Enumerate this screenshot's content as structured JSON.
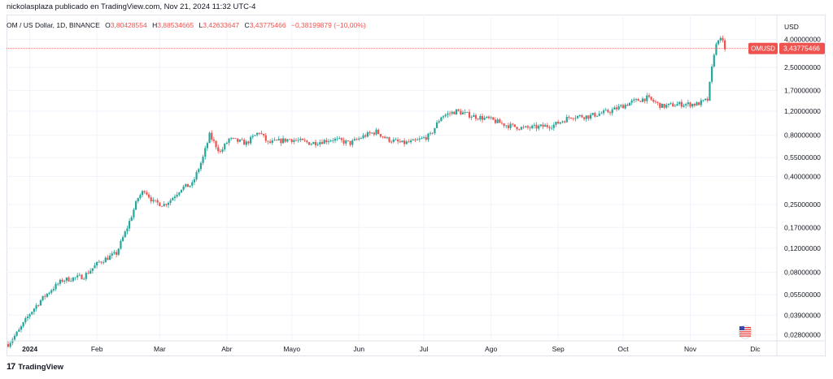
{
  "header": {
    "publish_line": "nickolasplaza publicado en TradingView.com, Nov 21, 2024 11:32 UTC-4"
  },
  "legend": {
    "symbol": "OM / US Dollar, 1D, BINANCE",
    "open_label": "O",
    "open": "3,80428554",
    "high_label": "H",
    "high": "3,88534665",
    "low_label": "L",
    "low": "3,42633647",
    "close_label": "C",
    "close": "3,43775466",
    "change": "−0,38199879 (−10,00%)"
  },
  "footer": {
    "brand": "TradingView",
    "logo_text": "17"
  },
  "colors": {
    "up": "#26a69a",
    "down": "#ef5350",
    "grid": "#f0f3fa",
    "axis_text": "#131722",
    "price_line": "#ef5350"
  },
  "chart_data": {
    "type": "candlestick",
    "scale": "log",
    "currency_label": "USD",
    "last_price_tag": {
      "ticker": "OMUSD",
      "value": "3,43775466",
      "price": 3.43775466
    },
    "y_ticks": [
      {
        "value": 4.0,
        "label": "4,00000000"
      },
      {
        "value": 2.5,
        "label": "2,50000000"
      },
      {
        "value": 1.7,
        "label": "1,70000000"
      },
      {
        "value": 1.2,
        "label": "1,20000000"
      },
      {
        "value": 0.8,
        "label": "0,80000000"
      },
      {
        "value": 0.55,
        "label": "0,55000000"
      },
      {
        "value": 0.4,
        "label": "0,40000000"
      },
      {
        "value": 0.25,
        "label": "0,25000000"
      },
      {
        "value": 0.17,
        "label": "0,17000000"
      },
      {
        "value": 0.12,
        "label": "0,12000000"
      },
      {
        "value": 0.08,
        "label": "0,08000000"
      },
      {
        "value": 0.055,
        "label": "0,05500000"
      },
      {
        "value": 0.039,
        "label": "0,03900000"
      },
      {
        "value": 0.028,
        "label": "0,02800000"
      }
    ],
    "x_ticks": [
      {
        "day": 0,
        "label": "2024",
        "bold": true
      },
      {
        "day": 31,
        "label": "Feb"
      },
      {
        "day": 60,
        "label": "Mar"
      },
      {
        "day": 91,
        "label": "Abr"
      },
      {
        "day": 121,
        "label": "Mayo"
      },
      {
        "day": 152,
        "label": "Jun"
      },
      {
        "day": 182,
        "label": "Jul"
      },
      {
        "day": 213,
        "label": "Ago"
      },
      {
        "day": 244,
        "label": "Sep"
      },
      {
        "day": 274,
        "label": "Oct"
      },
      {
        "day": 305,
        "label": "Nov"
      },
      {
        "day": 335,
        "label": "Dic"
      }
    ],
    "x_range_days": [
      -10,
      345
    ],
    "y_range": [
      0.026,
      4.5
    ],
    "price_anchors": [
      {
        "day": -10,
        "price": 0.024
      },
      {
        "day": -5,
        "price": 0.03
      },
      {
        "day": 0,
        "price": 0.04
      },
      {
        "day": 5,
        "price": 0.05
      },
      {
        "day": 10,
        "price": 0.06
      },
      {
        "day": 15,
        "price": 0.07
      },
      {
        "day": 25,
        "price": 0.075
      },
      {
        "day": 32,
        "price": 0.095
      },
      {
        "day": 40,
        "price": 0.11
      },
      {
        "day": 45,
        "price": 0.17
      },
      {
        "day": 50,
        "price": 0.28
      },
      {
        "day": 53,
        "price": 0.32
      },
      {
        "day": 57,
        "price": 0.26
      },
      {
        "day": 62,
        "price": 0.25
      },
      {
        "day": 65,
        "price": 0.27
      },
      {
        "day": 70,
        "price": 0.33
      },
      {
        "day": 75,
        "price": 0.35
      },
      {
        "day": 80,
        "price": 0.55
      },
      {
        "day": 83,
        "price": 0.8
      },
      {
        "day": 88,
        "price": 0.6
      },
      {
        "day": 92,
        "price": 0.75
      },
      {
        "day": 100,
        "price": 0.7
      },
      {
        "day": 106,
        "price": 0.85
      },
      {
        "day": 110,
        "price": 0.7
      },
      {
        "day": 120,
        "price": 0.75
      },
      {
        "day": 130,
        "price": 0.7
      },
      {
        "day": 140,
        "price": 0.75
      },
      {
        "day": 148,
        "price": 0.7
      },
      {
        "day": 155,
        "price": 0.8
      },
      {
        "day": 160,
        "price": 0.85
      },
      {
        "day": 165,
        "price": 0.75
      },
      {
        "day": 172,
        "price": 0.7
      },
      {
        "day": 178,
        "price": 0.72
      },
      {
        "day": 185,
        "price": 0.8
      },
      {
        "day": 190,
        "price": 1.1
      },
      {
        "day": 197,
        "price": 1.2
      },
      {
        "day": 205,
        "price": 1.1
      },
      {
        "day": 212,
        "price": 1.05
      },
      {
        "day": 220,
        "price": 0.95
      },
      {
        "day": 228,
        "price": 0.9
      },
      {
        "day": 235,
        "price": 0.92
      },
      {
        "day": 242,
        "price": 0.95
      },
      {
        "day": 250,
        "price": 1.1
      },
      {
        "day": 258,
        "price": 1.1
      },
      {
        "day": 268,
        "price": 1.2
      },
      {
        "day": 278,
        "price": 1.4
      },
      {
        "day": 285,
        "price": 1.5
      },
      {
        "day": 292,
        "price": 1.3
      },
      {
        "day": 300,
        "price": 1.35
      },
      {
        "day": 308,
        "price": 1.35
      },
      {
        "day": 313,
        "price": 1.45
      },
      {
        "day": 316,
        "price": 3.2
      },
      {
        "day": 318,
        "price": 4.1
      },
      {
        "day": 320,
        "price": 3.8
      },
      {
        "day": 321,
        "price": 3.44
      }
    ]
  }
}
